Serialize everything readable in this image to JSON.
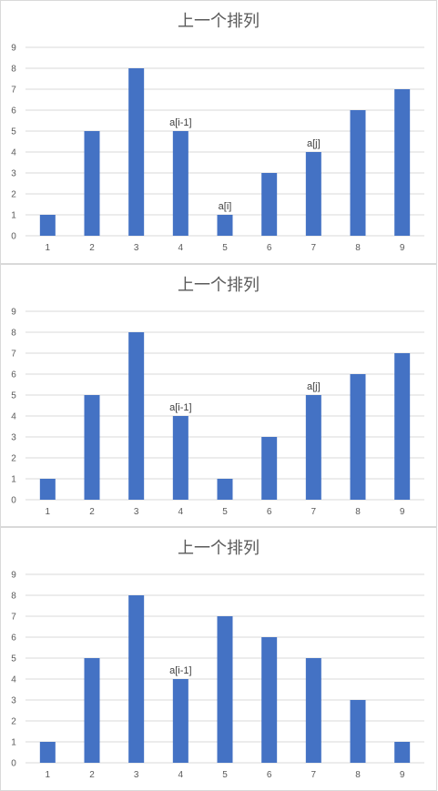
{
  "chart_data": [
    {
      "type": "bar",
      "title": "上一个排列",
      "categories": [
        "1",
        "2",
        "3",
        "4",
        "5",
        "6",
        "7",
        "8",
        "9"
      ],
      "values": [
        1,
        5,
        8,
        5,
        1,
        3,
        4,
        6,
        7
      ],
      "y_ticks": [
        "0",
        "1",
        "2",
        "3",
        "4",
        "5",
        "6",
        "7",
        "8",
        "9"
      ],
      "ylim": [
        0,
        9
      ],
      "grid": true,
      "bar_color": "#4472c4",
      "annotations": [
        {
          "category": "4",
          "text": "a[i-1]"
        },
        {
          "category": "5",
          "text": "a[i]"
        },
        {
          "category": "7",
          "text": "a[j]"
        }
      ]
    },
    {
      "type": "bar",
      "title": "上一个排列",
      "categories": [
        "1",
        "2",
        "3",
        "4",
        "5",
        "6",
        "7",
        "8",
        "9"
      ],
      "values": [
        1,
        5,
        8,
        4,
        1,
        3,
        5,
        6,
        7
      ],
      "y_ticks": [
        "0",
        "1",
        "2",
        "3",
        "4",
        "5",
        "6",
        "7",
        "8",
        "9"
      ],
      "ylim": [
        0,
        9
      ],
      "grid": true,
      "bar_color": "#4472c4",
      "annotations": [
        {
          "category": "4",
          "text": "a[i-1]"
        },
        {
          "category": "7",
          "text": "a[j]"
        }
      ]
    },
    {
      "type": "bar",
      "title": "上一个排列",
      "categories": [
        "1",
        "2",
        "3",
        "4",
        "5",
        "6",
        "7",
        "8",
        "9"
      ],
      "values": [
        1,
        5,
        8,
        4,
        7,
        6,
        5,
        3,
        1
      ],
      "y_ticks": [
        "0",
        "1",
        "2",
        "3",
        "4",
        "5",
        "6",
        "7",
        "8",
        "9"
      ],
      "ylim": [
        0,
        9
      ],
      "grid": true,
      "bar_color": "#4472c4",
      "annotations": [
        {
          "category": "4",
          "text": "a[i-1]"
        }
      ]
    }
  ]
}
